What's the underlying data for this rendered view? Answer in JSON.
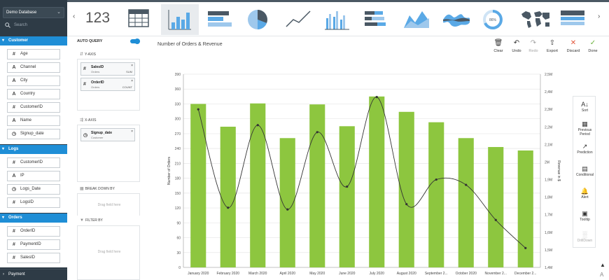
{
  "sidebar": {
    "database": "Demo Database",
    "search_placeholder": "Search",
    "sections": [
      {
        "label": "Customer",
        "fields": [
          {
            "type": "#",
            "label": "Age"
          },
          {
            "type": "A",
            "label": "Channel"
          },
          {
            "type": "A",
            "label": "City"
          },
          {
            "type": "A",
            "label": "Country"
          },
          {
            "type": "#",
            "label": "CustomerID"
          },
          {
            "type": "A",
            "label": "Name"
          },
          {
            "type": "clock",
            "label": "Signup_date"
          }
        ]
      },
      {
        "label": "Logs",
        "fields": [
          {
            "type": "#",
            "label": "CustomerID"
          },
          {
            "type": "A",
            "label": "IP"
          },
          {
            "type": "clock",
            "label": "Logs_Date"
          },
          {
            "type": "#",
            "label": "LogsID"
          }
        ]
      },
      {
        "label": "Orders",
        "fields": [
          {
            "type": "#",
            "label": "OrderID"
          },
          {
            "type": "#",
            "label": "PaymentID"
          },
          {
            "type": "#",
            "label": "SalesID"
          }
        ]
      }
    ],
    "payment_label": "Payment"
  },
  "topbar": {
    "number_label": "123",
    "chart_types": [
      "table",
      "bar",
      "horizontal-bar",
      "pie",
      "line",
      "grouped-bar",
      "stacked-bar",
      "area",
      "stream",
      "gauge",
      "world-map",
      "list-table"
    ],
    "selected": "bar",
    "gauge_value": "86%"
  },
  "query": {
    "auto_query_label": "AUTO QUERY",
    "y_axis_label": "Y-AXIS",
    "y_fields": [
      {
        "name": "SalesID",
        "source": "Orders",
        "agg": "SUM"
      },
      {
        "name": "OrderID",
        "source": "Orders",
        "agg": "COUNT"
      }
    ],
    "x_axis_label": "X-AXIS",
    "x_field": {
      "name": "Signup_date",
      "source": "Customer"
    },
    "breakdown_label": "BREAK DOWN BY",
    "filter_label": "FILTER BY",
    "drag_text": "Drag field here"
  },
  "toolbar": {
    "title": "Number of Orders & Revenue",
    "buttons": [
      {
        "label": "Clear",
        "icon": "trash-icon"
      },
      {
        "label": "Undo",
        "icon": "undo-icon"
      },
      {
        "label": "Redo",
        "icon": "redo-icon"
      },
      {
        "label": "Export",
        "icon": "export-icon"
      },
      {
        "label": "Discard",
        "icon": "close-icon"
      },
      {
        "label": "Done",
        "icon": "check-icon"
      }
    ]
  },
  "tools": [
    {
      "label": "Sort",
      "icon": "sort-az-icon"
    },
    {
      "label": "Previous Period",
      "icon": "calendar-icon"
    },
    {
      "label": "Prediction",
      "icon": "prediction-icon"
    },
    {
      "label": "Conditional",
      "icon": "conditional-icon"
    },
    {
      "label": "Alert",
      "icon": "bell-icon"
    },
    {
      "label": "Tooltip",
      "icon": "tooltip-icon"
    },
    {
      "label": "DrillDown",
      "icon": "drilldown-icon"
    }
  ],
  "colors": {
    "accent": "#1f8ed6",
    "bar": "#8dc63f",
    "line": "#333333",
    "sidebar": "#2e3b46"
  },
  "chart_data": {
    "type": "bar",
    "categories": [
      "January 2020",
      "February 2020",
      "March 2020",
      "April 2020",
      "May 2020",
      "June 2020",
      "July 2020",
      "August 2020",
      "September 2...",
      "October 2020",
      "November 2...",
      "December 2..."
    ],
    "series": [
      {
        "name": "",
        "values": [
          330,
          284,
          331,
          261,
          329,
          285,
          345,
          314,
          293,
          261,
          243,
          236
        ]
      },
      {
        "name": "",
        "values": [
          2.3,
          1.74,
          2.21,
          1.73,
          2.17,
          1.86,
          2.37,
          1.76,
          1.9,
          1.87,
          1.67,
          1.51
        ]
      }
    ],
    "xlabel": "",
    "ylabel": "Number of Orders",
    "y2label": "Revenue in $",
    "ylim": [
      0,
      390
    ],
    "yticks": [
      0,
      30,
      60,
      90,
      120,
      150,
      180,
      210,
      240,
      270,
      300,
      330,
      360,
      390
    ],
    "y2lim": [
      1.4,
      2.5
    ],
    "y2ticks": [
      "1,4M",
      "1,5M",
      "1,6M",
      "1,7M",
      "1,8M",
      "1,9M",
      "2M",
      "2,1M",
      "2,2M",
      "2,3M",
      "2,4M",
      "2,5M"
    ],
    "grid": true,
    "legend": "none"
  }
}
